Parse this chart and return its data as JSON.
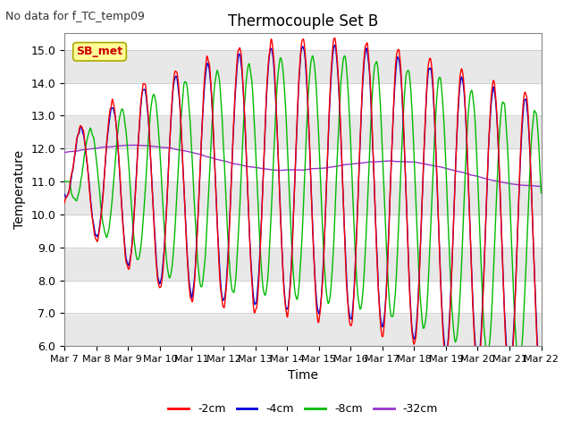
{
  "title": "Thermocouple Set B",
  "no_data_text": "No data for f_TC_temp09",
  "xlabel": "Time",
  "ylabel": "Temperature",
  "ylim": [
    6.0,
    15.5
  ],
  "yticks": [
    6.0,
    7.0,
    8.0,
    9.0,
    10.0,
    11.0,
    12.0,
    13.0,
    14.0,
    15.0
  ],
  "legend_labels": [
    "-2cm",
    "-4cm",
    "-8cm",
    "-32cm"
  ],
  "legend_colors": [
    "#ff0000",
    "#0000dd",
    "#00bb00",
    "#9933cc"
  ],
  "sb_met_color_bg": "#ffff99",
  "sb_met_color_text": "#cc0000",
  "background_color": "#ffffff",
  "band_color_light": "#ffffff",
  "band_color_dark": "#e8e8e8",
  "n_days": 15,
  "points_per_day": 96
}
